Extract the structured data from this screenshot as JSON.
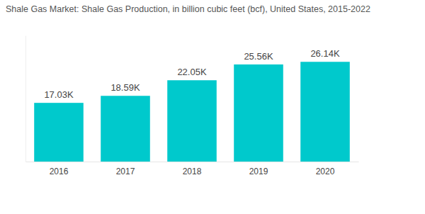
{
  "chart_data": {
    "type": "bar",
    "title": "Shale Gas Market: Shale Gas Production, in billion cubic feet (bcf), United States, 2015-2022",
    "categories": [
      "2016",
      "2017",
      "2018",
      "2019",
      "2020"
    ],
    "values": [
      17030,
      18590,
      22050,
      25560,
      26140
    ],
    "value_labels": [
      "17.03K",
      "18.59K",
      "22.05K",
      "25.56K",
      "26.14K"
    ],
    "color": "#00c9cc",
    "ylim": [
      4000,
      32000
    ],
    "data_labels": true,
    "tick_labels": "x",
    "grid": false
  }
}
